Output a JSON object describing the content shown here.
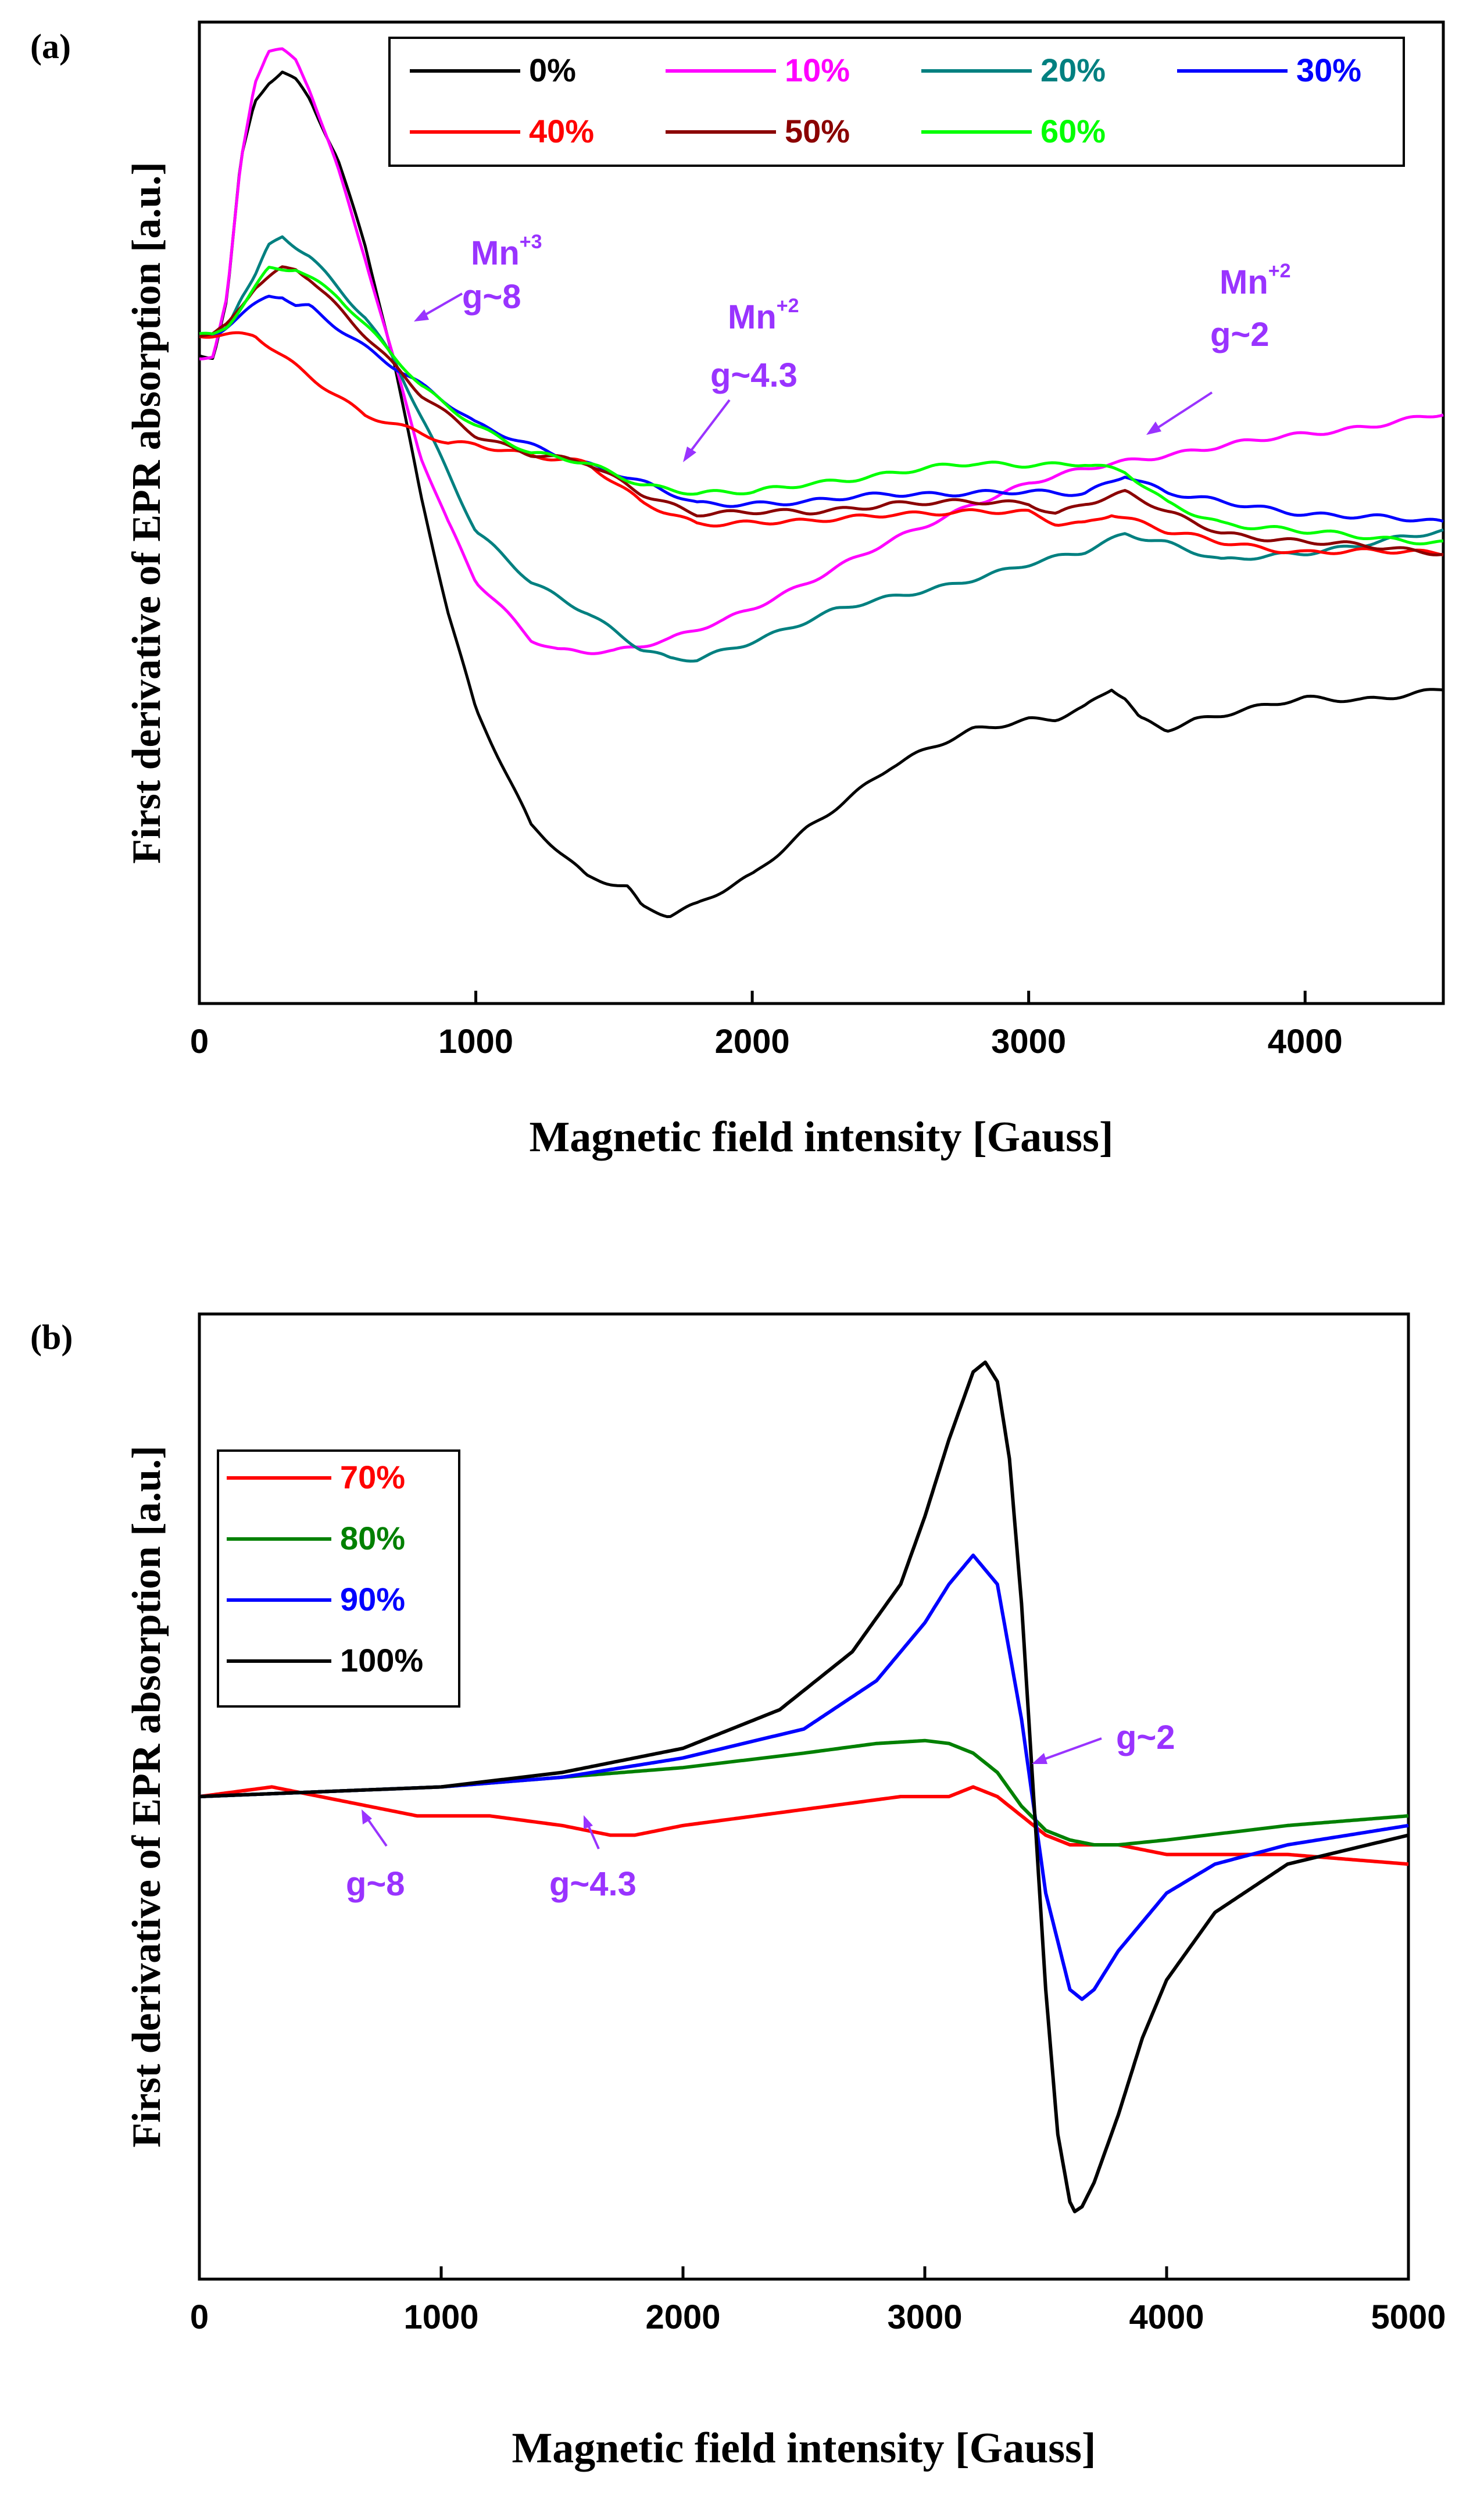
{
  "chart_data": [
    {
      "panel_label": "(a)",
      "type": "line",
      "xlabel": "Magnetic field intensity [Gauss]",
      "ylabel": "First derivative of EPR absorption [a.u.]",
      "xlim": [
        0,
        4500
      ],
      "ylim": [
        0,
        100
      ],
      "xticks": [
        0,
        1000,
        2000,
        3000,
        4000
      ],
      "xtick_labels": [
        "0",
        "1000",
        "2000",
        "3000",
        "4000"
      ],
      "legend_position": "top-right",
      "series": [
        {
          "name": "0%",
          "color": "#000000",
          "x": [
            0,
            50,
            100,
            150,
            200,
            250,
            300,
            350,
            400,
            500,
            600,
            700,
            800,
            900,
            1000,
            1200,
            1400,
            1550,
            1600,
            1700,
            1800,
            2000,
            2200,
            2500,
            2800,
            3000,
            3100,
            3200,
            3300,
            3350,
            3400,
            3500,
            3600,
            3800,
            4000,
            4200,
            4500
          ],
          "y": [
            66,
            66,
            72,
            86,
            92,
            94,
            95,
            94,
            92,
            86,
            77,
            66,
            52,
            40,
            30,
            18,
            13,
            12,
            10,
            9,
            10,
            13,
            18,
            24,
            28,
            29,
            29,
            30,
            32,
            31,
            29,
            28,
            29,
            30,
            31,
            31,
            32
          ]
        },
        {
          "name": "10%",
          "color": "#ff00ff",
          "x": [
            0,
            50,
            100,
            150,
            200,
            250,
            300,
            350,
            400,
            500,
            600,
            700,
            800,
            900,
            1000,
            1200,
            1300,
            1500,
            1700,
            1900,
            2200,
            2500,
            2800,
            3000,
            3300,
            3500,
            4000,
            4500
          ],
          "y": [
            66,
            66,
            72,
            86,
            94,
            97,
            97,
            96,
            93,
            85,
            76,
            66,
            56,
            49,
            43,
            37,
            36,
            36,
            37,
            39,
            43,
            47,
            51,
            53,
            55,
            56,
            58,
            60
          ]
        },
        {
          "name": "20%",
          "color": "#008080",
          "x": [
            0,
            50,
            100,
            150,
            200,
            250,
            300,
            350,
            400,
            500,
            600,
            700,
            800,
            900,
            1000,
            1200,
            1400,
            1600,
            1700,
            1800,
            2000,
            2300,
            2600,
            2900,
            3200,
            3350,
            3500,
            3700,
            4000,
            4500
          ],
          "y": [
            68,
            68,
            69,
            72,
            74,
            77,
            78,
            77,
            76,
            73,
            70,
            66,
            60,
            54,
            48,
            43,
            40,
            36,
            35,
            35,
            37,
            40,
            42,
            44,
            46,
            48,
            47,
            45,
            46,
            48
          ]
        },
        {
          "name": "30%",
          "color": "#0000ff",
          "x": [
            0,
            50,
            100,
            150,
            200,
            250,
            300,
            350,
            400,
            500,
            600,
            700,
            800,
            900,
            1000,
            1200,
            1400,
            1600,
            1800,
            2000,
            2200,
            2500,
            2800,
            3000,
            3200,
            3350,
            3500,
            3700,
            4000,
            4500
          ],
          "y": [
            68,
            68,
            69,
            70,
            71,
            72,
            72,
            71,
            71,
            69,
            67,
            65,
            63,
            61,
            59,
            57,
            55,
            53,
            51,
            51,
            51,
            52,
            52,
            52,
            52,
            54,
            52,
            51,
            50,
            49
          ]
        },
        {
          "name": "40%",
          "color": "#ff0000",
          "x": [
            0,
            50,
            100,
            150,
            200,
            250,
            300,
            350,
            400,
            500,
            600,
            700,
            800,
            900,
            1000,
            1200,
            1400,
            1600,
            1800,
            2000,
            2200,
            2500,
            2800,
            3000,
            3100,
            3200,
            3300,
            3400,
            3500,
            3700,
            4000,
            4500
          ],
          "y": [
            68,
            68,
            68,
            68,
            68,
            67,
            66,
            65,
            64,
            62,
            60,
            59,
            58,
            57,
            57,
            56,
            55,
            51,
            49,
            49,
            49,
            50,
            50,
            50,
            49,
            49,
            50,
            49,
            48,
            47,
            46,
            46
          ]
        },
        {
          "name": "50%",
          "color": "#8b0000",
          "x": [
            0,
            50,
            100,
            150,
            200,
            250,
            300,
            350,
            400,
            500,
            600,
            700,
            800,
            900,
            1000,
            1200,
            1400,
            1600,
            1800,
            2000,
            2200,
            2500,
            2800,
            3000,
            3100,
            3200,
            3350,
            3500,
            3700,
            4000,
            4500
          ],
          "y": [
            68,
            68,
            69,
            71,
            73,
            74,
            75,
            75,
            74,
            71,
            68,
            65,
            62,
            60,
            58,
            56,
            55,
            52,
            50,
            50,
            50,
            51,
            51,
            51,
            50,
            51,
            52,
            50,
            48,
            47,
            46
          ]
        },
        {
          "name": "60%",
          "color": "#00ff00",
          "x": [
            0,
            50,
            100,
            150,
            200,
            250,
            300,
            350,
            400,
            500,
            600,
            700,
            800,
            900,
            1000,
            1200,
            1400,
            1600,
            1800,
            2000,
            2200,
            2500,
            2800,
            3000,
            3200,
            3350,
            3500,
            3700,
            4000,
            4500
          ],
          "y": [
            68,
            68,
            69,
            71,
            73,
            75,
            75,
            75,
            74,
            72,
            69,
            66,
            63,
            61,
            59,
            56,
            55,
            53,
            52,
            52,
            53,
            54,
            55,
            55,
            55,
            54,
            51,
            49,
            48,
            47
          ]
        }
      ],
      "annotations": [
        {
          "text": "Mn",
          "superscript": "+3",
          "line2": "g~8",
          "color": "#9933ff"
        },
        {
          "text": "Mn",
          "superscript": "+2",
          "line2": "g~4.3",
          "color": "#9933ff"
        },
        {
          "text": "Mn",
          "superscript": "+2",
          "line2": "g~2",
          "color": "#9933ff"
        }
      ]
    },
    {
      "panel_label": "(b)",
      "type": "line",
      "xlabel": "Magnetic field intensity [Gauss]",
      "ylabel": "First derivative of EPR absorption [a.u.]",
      "xlim": [
        0,
        5000
      ],
      "ylim": [
        0,
        100
      ],
      "xticks": [
        0,
        1000,
        2000,
        3000,
        4000,
        5000
      ],
      "xtick_labels": [
        "0",
        "1000",
        "2000",
        "3000",
        "4000",
        "5000"
      ],
      "legend_position": "top-left",
      "series": [
        {
          "name": "70%",
          "color": "#ff0000",
          "x": [
            0,
            300,
            500,
            700,
            900,
            1200,
            1500,
            1700,
            1800,
            2000,
            2300,
            2600,
            2900,
            3100,
            3200,
            3300,
            3400,
            3500,
            3600,
            3800,
            4000,
            4500,
            5000
          ],
          "y": [
            50,
            51,
            50,
            49,
            48,
            48,
            47,
            46,
            46,
            47,
            48,
            49,
            50,
            50,
            51,
            50,
            48,
            46,
            45,
            45,
            44,
            44,
            43
          ]
        },
        {
          "name": "80%",
          "color": "#008000",
          "x": [
            0,
            500,
            1000,
            1500,
            2000,
            2500,
            2800,
            3000,
            3100,
            3200,
            3300,
            3400,
            3500,
            3600,
            3700,
            3800,
            4000,
            4500,
            5000
          ],
          "y": [
            50,
            50.5,
            51,
            52,
            53,
            54.5,
            55.5,
            55.8,
            55.5,
            54.5,
            52.5,
            49,
            46.5,
            45.5,
            45,
            45,
            45.5,
            47,
            48
          ]
        },
        {
          "name": "90%",
          "color": "#0000ff",
          "x": [
            0,
            500,
            1000,
            1500,
            2000,
            2500,
            2800,
            3000,
            3100,
            3200,
            3300,
            3400,
            3500,
            3600,
            3650,
            3700,
            3800,
            4000,
            4200,
            4500,
            5000
          ],
          "y": [
            50,
            50.5,
            51,
            52,
            54,
            57,
            62,
            68,
            72,
            75,
            72,
            58,
            40,
            30,
            29,
            30,
            34,
            40,
            43,
            45,
            47
          ]
        },
        {
          "name": "100%",
          "color": "#000000",
          "x": [
            0,
            500,
            1000,
            1500,
            2000,
            2400,
            2700,
            2900,
            3000,
            3100,
            3200,
            3250,
            3300,
            3350,
            3400,
            3450,
            3500,
            3550,
            3600,
            3620,
            3650,
            3700,
            3800,
            3900,
            4000,
            4200,
            4500,
            5000
          ],
          "y": [
            50,
            50.5,
            51,
            52.5,
            55,
            59,
            65,
            72,
            79,
            87,
            94,
            95,
            93,
            85,
            70,
            50,
            30,
            15,
            8,
            7,
            7.5,
            10,
            17,
            25,
            31,
            38,
            43,
            46
          ]
        }
      ],
      "annotations": [
        {
          "text": "g~2",
          "color": "#9933ff"
        },
        {
          "text": "g~8",
          "color": "#9933ff"
        },
        {
          "text": "g~4.3",
          "color": "#9933ff"
        }
      ]
    }
  ]
}
